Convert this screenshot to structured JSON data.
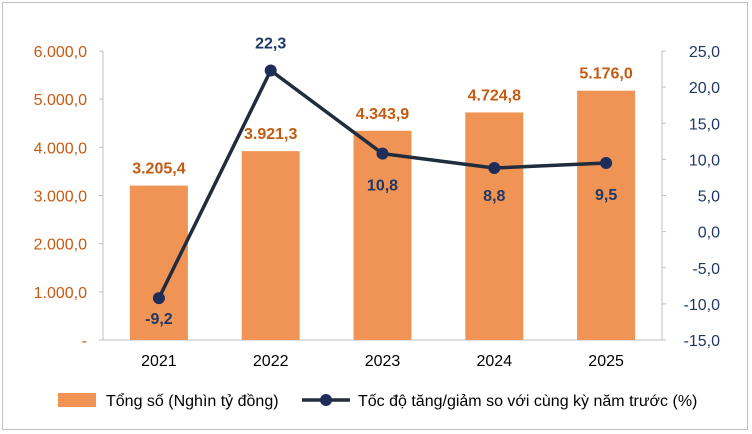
{
  "chart_data": {
    "type": "bar+line",
    "categories": [
      "2021",
      "2022",
      "2023",
      "2024",
      "2025"
    ],
    "series": [
      {
        "name": "Tổng số (Nghìn tỷ đồng)",
        "type": "bar",
        "axis": "left",
        "values": [
          3205.4,
          3921.3,
          4343.9,
          4724.8,
          5176.0
        ],
        "labels": [
          "3.205,4",
          "3.921,3",
          "4.343,9",
          "4.724,8",
          "5.176,0"
        ],
        "color": "#F09456",
        "label_color": "#C55A11"
      },
      {
        "name": "Tốc độ tăng/giảm so với cùng kỳ năm trước (%)",
        "type": "line",
        "axis": "right",
        "values": [
          -9.2,
          22.3,
          10.8,
          8.8,
          9.5
        ],
        "labels": [
          "-9,2",
          "22,3",
          "10,8",
          "8,8",
          "9,5"
        ],
        "color": "#1F2D3D",
        "marker_color": "#1F2D5A",
        "label_color": "#1F3864"
      }
    ],
    "y_left": {
      "range": [
        0,
        6000
      ],
      "ticks": [
        0,
        1000,
        2000,
        3000,
        4000,
        5000,
        6000
      ],
      "tick_labels": [
        "-",
        "1.000,0",
        "2.000,0",
        "3.000,0",
        "4.000,0",
        "5.000,0",
        "6.000,0"
      ],
      "color": "#C55A11"
    },
    "y_right": {
      "range": [
        -15,
        25
      ],
      "ticks": [
        -15,
        -10,
        -5,
        0,
        5,
        10,
        15,
        20,
        25
      ],
      "tick_labels": [
        "-15,0",
        "-10,0",
        "-5,0",
        "0,0",
        "5,0",
        "10,0",
        "15,0",
        "20,0",
        "25,0"
      ],
      "color": "#1F3864"
    },
    "grid": false,
    "legend": "bottom"
  }
}
